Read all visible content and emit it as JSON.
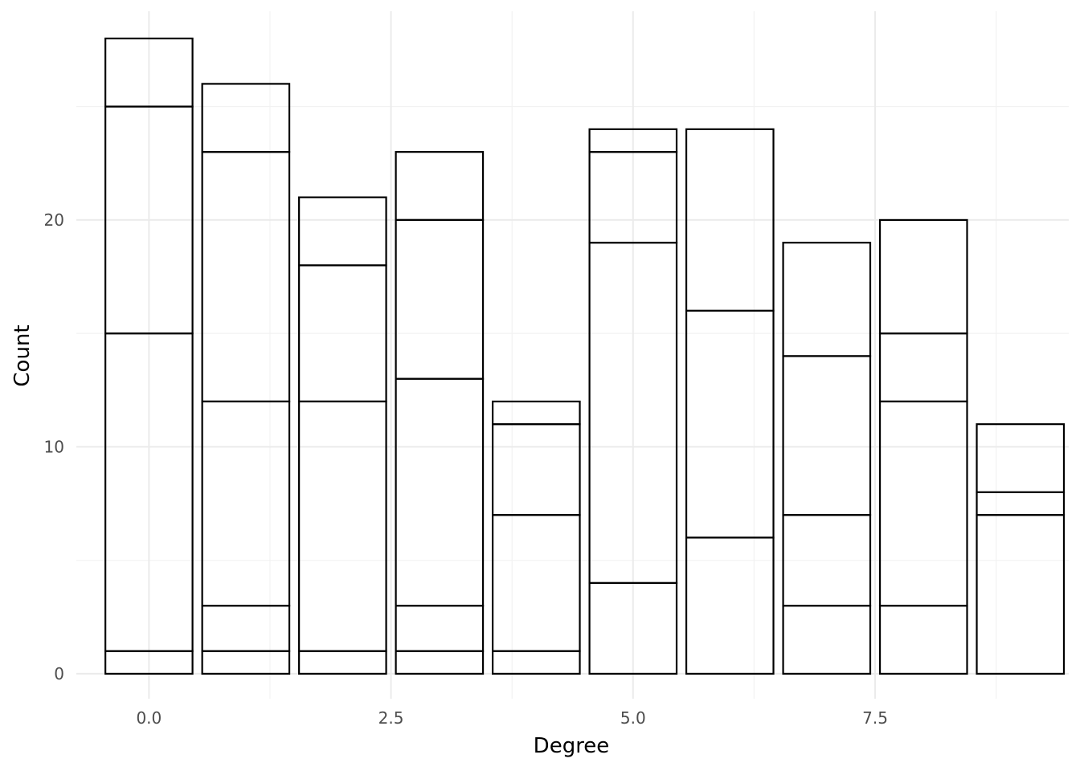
{
  "chart_data": {
    "type": "bar",
    "stacked": true,
    "title": "",
    "xlabel": "Degree",
    "ylabel": "Count",
    "xlim": [
      -0.75,
      9.5
    ],
    "ylim": [
      -1.1,
      29.2
    ],
    "x_ticks": [
      0.0,
      2.5,
      5.0,
      7.5
    ],
    "x_tick_labels": [
      "0.0",
      "2.5",
      "5.0",
      "7.5"
    ],
    "y_ticks": [
      0,
      10,
      20
    ],
    "y_tick_labels": [
      "0",
      "10",
      "20"
    ],
    "grid": true,
    "legend": "none",
    "fill": "#ffffff",
    "stroke": "#000000",
    "bars": [
      {
        "x": 0,
        "segments": [
          1,
          14,
          10,
          3
        ]
      },
      {
        "x": 1,
        "segments": [
          1,
          2,
          9,
          11,
          3
        ]
      },
      {
        "x": 2,
        "segments": [
          1,
          11,
          6,
          3
        ]
      },
      {
        "x": 3,
        "segments": [
          1,
          2,
          10,
          7,
          3
        ]
      },
      {
        "x": 4,
        "segments": [
          1,
          6,
          4,
          1
        ]
      },
      {
        "x": 5,
        "segments": [
          4,
          15,
          4,
          1
        ]
      },
      {
        "x": 6,
        "segments": [
          6,
          10,
          8
        ]
      },
      {
        "x": 7,
        "segments": [
          3,
          4,
          7,
          5
        ]
      },
      {
        "x": 8,
        "segments": [
          3,
          9,
          3,
          5
        ]
      },
      {
        "x": 9,
        "segments": [
          7,
          1,
          3
        ]
      }
    ],
    "totals": [
      28,
      26,
      21,
      23,
      12,
      24,
      24,
      19,
      20,
      11
    ]
  }
}
